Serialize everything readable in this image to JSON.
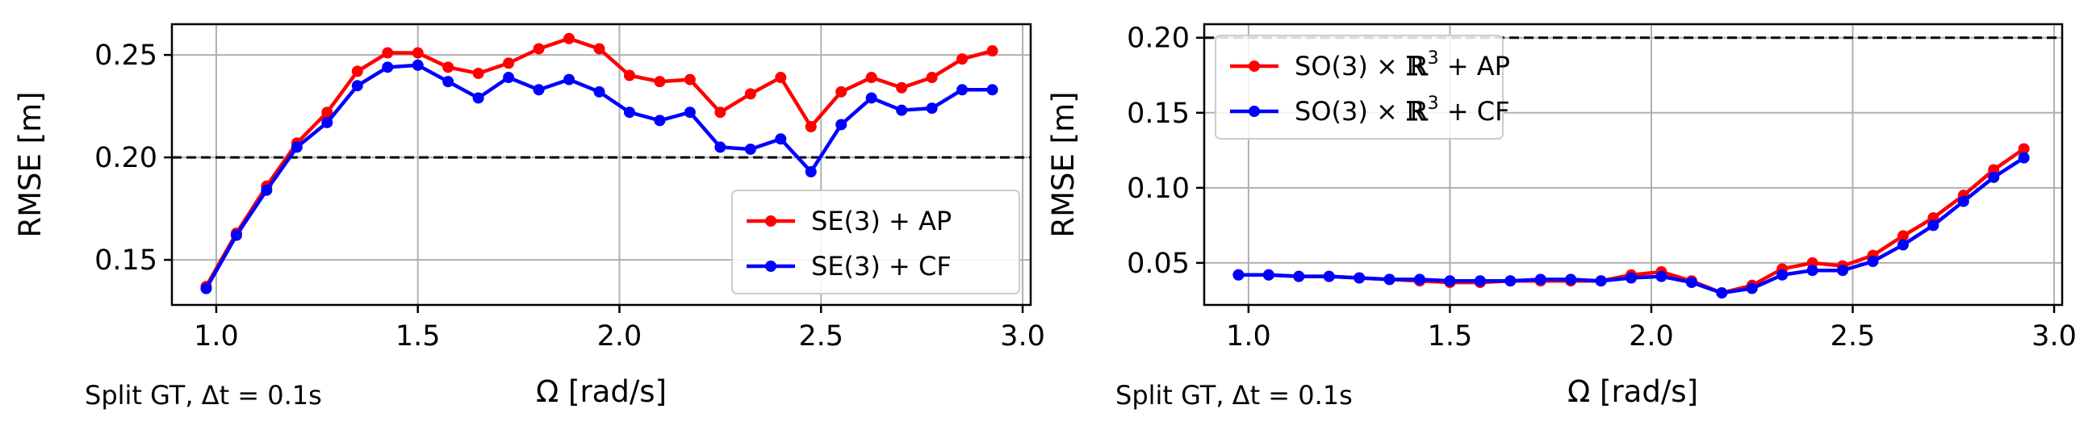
{
  "chart_data": [
    {
      "type": "line",
      "xlabel": "Ω [rad/s]",
      "ylabel": "RMSE [m]",
      "note": "Split GT, Δt = 0.1s",
      "xlim": [
        0.89,
        3.02
      ],
      "ylim": [
        0.128,
        0.265
      ],
      "xticks": [
        1.0,
        1.5,
        2.0,
        2.5,
        3.0
      ],
      "xtick_labels": [
        "1.0",
        "1.5",
        "2.0",
        "2.5",
        "3.0"
      ],
      "yticks": [
        0.15,
        0.2,
        0.25
      ],
      "ytick_labels": [
        "0.15",
        "0.20",
        "0.25"
      ],
      "grid": true,
      "reference_line": 0.2,
      "legend_position": "lower-right",
      "x": [
        0.975,
        1.05,
        1.125,
        1.2,
        1.275,
        1.35,
        1.425,
        1.5,
        1.575,
        1.65,
        1.725,
        1.8,
        1.875,
        1.95,
        2.025,
        2.1,
        2.175,
        2.25,
        2.325,
        2.4,
        2.475,
        2.55,
        2.625,
        2.7,
        2.775,
        2.85,
        2.925
      ],
      "series": [
        {
          "name": "SE(3) + AP",
          "color": "#ff0000",
          "values": [
            0.137,
            0.163,
            0.186,
            0.207,
            0.222,
            0.242,
            0.251,
            0.251,
            0.244,
            0.241,
            0.246,
            0.253,
            0.258,
            0.253,
            0.24,
            0.237,
            0.238,
            0.222,
            0.231,
            0.239,
            0.215,
            0.232,
            0.239,
            0.234,
            0.239,
            0.248,
            0.252
          ]
        },
        {
          "name": "SE(3) + CF",
          "color": "#0000ff",
          "values": [
            0.136,
            0.162,
            0.184,
            0.205,
            0.217,
            0.235,
            0.244,
            0.245,
            0.237,
            0.229,
            0.239,
            0.233,
            0.238,
            0.232,
            0.222,
            0.218,
            0.222,
            0.205,
            0.204,
            0.209,
            0.193,
            0.216,
            0.229,
            0.223,
            0.224,
            0.233,
            0.233
          ]
        }
      ]
    },
    {
      "type": "line",
      "xlabel": "Ω [rad/s]",
      "ylabel": "RMSE [m]",
      "note": "Split GT, Δt = 0.1s",
      "xlim": [
        0.89,
        3.02
      ],
      "ylim": [
        0.022,
        0.209
      ],
      "xticks": [
        1.0,
        1.5,
        2.0,
        2.5,
        3.0
      ],
      "xtick_labels": [
        "1.0",
        "1.5",
        "2.0",
        "2.5",
        "3.0"
      ],
      "yticks": [
        0.05,
        0.1,
        0.15,
        0.2
      ],
      "ytick_labels": [
        "0.05",
        "0.10",
        "0.15",
        "0.20"
      ],
      "grid": true,
      "reference_line": 0.2,
      "legend_position": "upper-left",
      "x": [
        0.975,
        1.05,
        1.125,
        1.2,
        1.275,
        1.35,
        1.425,
        1.5,
        1.575,
        1.65,
        1.725,
        1.8,
        1.875,
        1.95,
        2.025,
        2.1,
        2.175,
        2.25,
        2.325,
        2.4,
        2.475,
        2.55,
        2.625,
        2.7,
        2.775,
        2.85,
        2.925
      ],
      "series": [
        {
          "name": "SO(3) × ℝ³ + AP",
          "name_parts": [
            "SO(3) × ",
            "ℝ",
            "3",
            " + AP"
          ],
          "color": "#ff0000",
          "values": [
            0.042,
            0.042,
            0.041,
            0.041,
            0.04,
            0.039,
            0.038,
            0.037,
            0.037,
            0.038,
            0.038,
            0.038,
            0.038,
            0.042,
            0.044,
            0.038,
            0.03,
            0.035,
            0.046,
            0.05,
            0.048,
            0.055,
            0.068,
            0.08,
            0.095,
            0.112,
            0.126
          ]
        },
        {
          "name": "SO(3) × ℝ³ + CF",
          "name_parts": [
            "SO(3) × ",
            "ℝ",
            "3",
            " + CF"
          ],
          "color": "#0000ff",
          "values": [
            0.042,
            0.042,
            0.041,
            0.041,
            0.04,
            0.039,
            0.039,
            0.038,
            0.038,
            0.038,
            0.039,
            0.039,
            0.038,
            0.04,
            0.041,
            0.037,
            0.03,
            0.033,
            0.042,
            0.045,
            0.045,
            0.051,
            0.062,
            0.075,
            0.091,
            0.107,
            0.12
          ]
        }
      ]
    }
  ]
}
